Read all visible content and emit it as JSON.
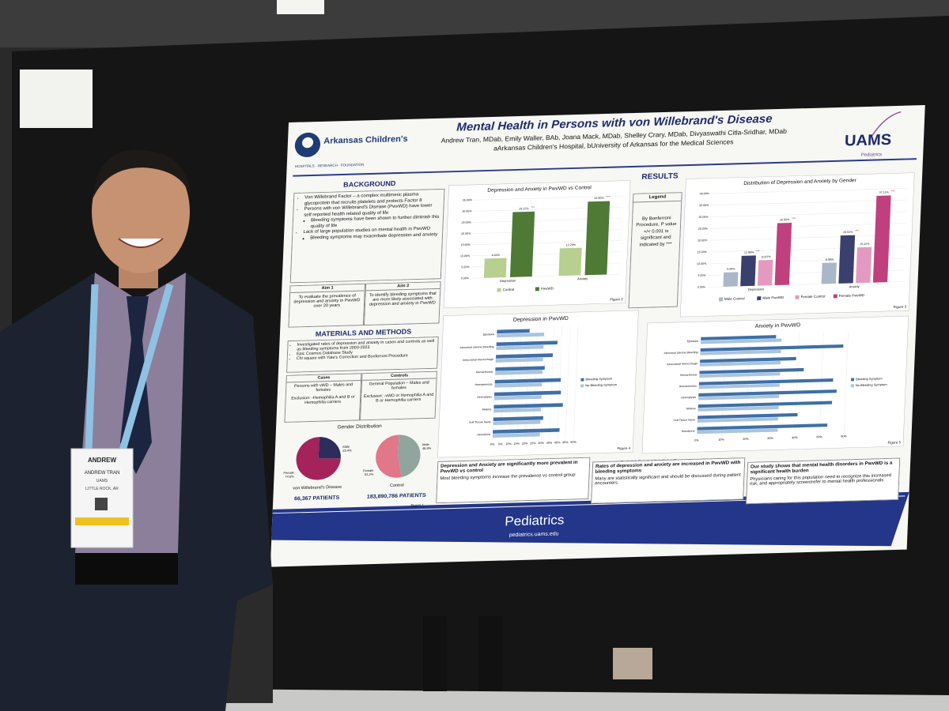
{
  "poster": {
    "header": {
      "title": "Mental Health in Persons with von Willebrand's Disease",
      "authors": "Andrew Tran, MDab, Emily Waller, BAb, Joana Mack, MDab, Shelley Crary, MDab, Divyaswathi Citla-Sridhar, MDab",
      "affiliations": "aArkansas Children's Hospital, bUniversity of Arkansas for the Medical Sciences",
      "logo_left": "Arkansas Children's",
      "logo_left_sub": "HOSPITALS · RESEARCH · FOUNDATION",
      "logo_right": "UAMS",
      "logo_right_sub": "Pediatrics"
    },
    "background": {
      "heading": "BACKGROUND",
      "bullets": [
        {
          "text": "Von Willebrand Factor – a complex multimeric plasma glycoprotein that recruits platelets and protects Factor 8",
          "sub": []
        },
        {
          "text": "Persons with von Willebrand's Disease (PwvWD) have lower self reported health related quality of life",
          "sub": [
            "Bleeding symptoms have been shown to further diminish this quality of life"
          ]
        },
        {
          "text": "Lack of large population studies on mental health in PwvWD",
          "sub": [
            "Bleeding symptoms may exacerbate depression and anxiety"
          ]
        }
      ]
    },
    "aims": [
      {
        "label": "Aim 1",
        "text": "To evaluate the prevalence of depression and anxiety in PwvWD over 20 years"
      },
      {
        "label": "Aim 2",
        "text": "To identify bleeding symptoms that are more likely associated with depression and anxiety in PwvWD"
      }
    ],
    "methods": {
      "heading": "MATERIALS AND METHODS",
      "bullets": [
        "Investigated rates of depression and anxiety in cases and controls as well as bleeding symptoms from 2003-2023",
        "Epic Cosmos Database Study",
        "Chi square with Yate's Correction and Bonferroni Procedure"
      ],
      "cases": {
        "heading": "Cases",
        "inclusion": "Persons with vWD – Males and females",
        "exclusion": "Exclusion: -Hemophilia A and B or Hemophilia carriers"
      },
      "controls": {
        "heading": "Controls",
        "inclusion": "General Population – Males and females",
        "exclusion": "Exclusion: -vWD or Hemophilia A and B or Hemophilia carriers"
      }
    },
    "gender": {
      "title": "Gender Distribution",
      "figure": "Figure 1",
      "pies": [
        {
          "type": "pie",
          "label": "von Willebrand's Disease",
          "patients": "66,367 PATIENTS",
          "categories": [
            "Female",
            "Male"
          ],
          "values": [
            74.6,
            25.4
          ],
          "value_labels": [
            "74.6%",
            "25.4%"
          ],
          "colors": [
            "#a3235a",
            "#2c2d5c"
          ]
        },
        {
          "type": "pie",
          "label": "Control",
          "patients": "183,890,786 PATIENTS",
          "categories": [
            "Female",
            "Male"
          ],
          "values": [
            53.2,
            46.8
          ],
          "value_labels": [
            "53.2%",
            "46.8%"
          ],
          "colors": [
            "#e0788a",
            "#8fa59d"
          ]
        }
      ]
    },
    "results": {
      "heading": "RESULTS",
      "legend": {
        "title": "Legend",
        "text": "By Bonferroni Procedure, P value =/< 0.001 is significant and indicated by ***"
      }
    },
    "conclusions": {
      "heading": "CONCLUSIONS",
      "items": [
        {
          "heading": "Depression and Anxiety are significantly more prevalent in PwvWD vs control",
          "text": "Most bleeding symptoms increase the prevalence vs control group"
        },
        {
          "heading": "Rates of depression and anxiety are increased in PwvWD with bleeding symptoms",
          "text": "Many are statistically significant and should be discussed during patient encounters"
        },
        {
          "heading": "Our study shows that mental health disorders in PwvWD is a significant health burden",
          "text": "Physicians caring for this population need to recognize this increased risk, and appropriately screen/refer to mental health professionals"
        }
      ]
    },
    "footer": {
      "title": "Pediatrics",
      "url": "pediatrics.uams.edu"
    }
  },
  "chart_data": [
    {
      "type": "bar",
      "title": "Depression and Anxiety in PwvWD vs Control",
      "figure": "Figure 2",
      "significance": "***",
      "categories": [
        "Depression",
        "Anxiety"
      ],
      "series": [
        {
          "name": "Control",
          "color": "#b7cf8f",
          "values": [
            8.62,
            12.29
          ],
          "value_labels": [
            "8.62%",
            "12.29%"
          ],
          "significant": false
        },
        {
          "name": "PwvWD",
          "color": "#4e7a36",
          "values": [
            29.12,
            32.9
          ],
          "value_labels": [
            "29.12%",
            "32.90%"
          ],
          "significant": true
        }
      ],
      "ylim": [
        0,
        35
      ],
      "yticks": [
        {
          "value": 0,
          "label": "0.00%"
        },
        {
          "value": 5,
          "label": "5.00%"
        },
        {
          "value": 10,
          "label": "10.00%"
        },
        {
          "value": 15,
          "label": "15.00%"
        },
        {
          "value": 20,
          "label": "20.00%"
        },
        {
          "value": 25,
          "label": "25.00%"
        },
        {
          "value": 30,
          "label": "30.00%"
        },
        {
          "value": 35,
          "label": "35.00%"
        }
      ]
    },
    {
      "type": "bar",
      "title": "Distribution of Depression and Anxiety by Gender",
      "figure": "Figure 3",
      "significance": "***",
      "categories": [
        "Depression",
        "Anxiety"
      ],
      "series": [
        {
          "name": "Male Control",
          "color": "#a9b7c9",
          "values": [
            6.09,
            8.99
          ],
          "value_labels": [
            "6.09%",
            "8.99%"
          ],
          "significant": false
        },
        {
          "name": "Male PwvWD",
          "color": "#3b3f6e",
          "values": [
            12.98,
            20.52
          ],
          "value_labels": [
            "12.98%",
            "20.52%"
          ],
          "significant": true
        },
        {
          "name": "Female Control",
          "color": "#e49ac0",
          "values": [
            10.87,
            15.22
          ],
          "value_labels": [
            "10.87%",
            "15.22%"
          ],
          "significant": false
        },
        {
          "name": "Female PwvWD",
          "color": "#c0407e",
          "values": [
            26.56,
            37.11
          ],
          "value_labels": [
            "26.56%",
            "37.11%"
          ],
          "significant": true
        }
      ],
      "ylim": [
        0,
        40
      ],
      "yticks": [
        {
          "value": 0,
          "label": "0.00%"
        },
        {
          "value": 5,
          "label": "5.00%"
        },
        {
          "value": 10,
          "label": "10.00%"
        },
        {
          "value": 15,
          "label": "15.00%"
        },
        {
          "value": 20,
          "label": "20.00%"
        },
        {
          "value": 25,
          "label": "25.00%"
        },
        {
          "value": 30,
          "label": "30.00%"
        },
        {
          "value": 35,
          "label": "35.00%"
        },
        {
          "value": 40,
          "label": "40.00%"
        }
      ]
    },
    {
      "type": "hbar",
      "title": "Depression in PwvWD",
      "figure": "Figure 4",
      "categories": [
        "Epistaxis",
        "Abnormal Uterine Bleeding",
        "Intracranial Hemorrhage",
        "Hemarthrosis",
        "Hematemesis",
        "Hemoptysis",
        "Melena",
        "Soft Tissue Injury",
        "Hematuria"
      ],
      "series": [
        {
          "name": "Bleeding Symptom",
          "color": "#3e6fa6",
          "values": [
            20.12,
            37.6,
            35.0,
            30.4,
            40.6,
            41.0,
            42.5,
            30.7,
            41.1
          ]
        },
        {
          "name": "No Bleeding Symptom",
          "color": "#a9c4e0",
          "values": [
            29.12,
            29.12,
            29.12,
            29.12,
            29.12,
            29.12,
            29.12,
            29.12,
            29.12
          ]
        }
      ],
      "xlim": [
        0,
        50
      ],
      "xticks": [
        {
          "value": 0,
          "label": "0%"
        },
        {
          "value": 5,
          "label": "5%"
        },
        {
          "value": 10,
          "label": "10%"
        },
        {
          "value": 15,
          "label": "15%"
        },
        {
          "value": 20,
          "label": "20%"
        },
        {
          "value": 25,
          "label": "25%"
        },
        {
          "value": 30,
          "label": "30%"
        },
        {
          "value": 35,
          "label": "35%"
        },
        {
          "value": 40,
          "label": "40%"
        },
        {
          "value": 45,
          "label": "45%"
        },
        {
          "value": 50,
          "label": "50%"
        }
      ]
    },
    {
      "type": "hbar",
      "title": "Anxiety in PwvWD",
      "figure": "Figure 5",
      "categories": [
        "Epistaxis",
        "Abnormal Uterine Bleeding",
        "Intracranial Hemorrhage",
        "Hemarthrosis",
        "Hematemesis",
        "Hemoptysis",
        "Melena",
        "Soft Tissue Injury",
        "Hematuria"
      ],
      "series": [
        {
          "name": "Bleeding Symptom",
          "color": "#3e6fa6",
          "values": [
            30.65,
            58.25,
            39.21,
            42.49,
            54.65,
            56.26,
            54.58,
            40.73,
            53.06
          ]
        },
        {
          "name": "No Bleeding Symptom",
          "color": "#a9c4e0",
          "values": [
            32.9,
            32.9,
            32.9,
            32.9,
            32.9,
            32.9,
            32.9,
            32.9,
            32.9
          ]
        }
      ],
      "xlim": [
        0,
        60
      ],
      "xticks": [
        {
          "value": 0,
          "label": "0%"
        },
        {
          "value": 10,
          "label": "10%"
        },
        {
          "value": 20,
          "label": "20%"
        },
        {
          "value": 30,
          "label": "30%"
        },
        {
          "value": 40,
          "label": "40%"
        },
        {
          "value": 50,
          "label": "50%"
        },
        {
          "value": 60,
          "label": "60%"
        }
      ]
    }
  ],
  "badge": {
    "first_name": "ANDREW",
    "full_name": "ANDREW TRAN",
    "org": "UAMS",
    "location": "LITTLE ROCK, AR"
  }
}
